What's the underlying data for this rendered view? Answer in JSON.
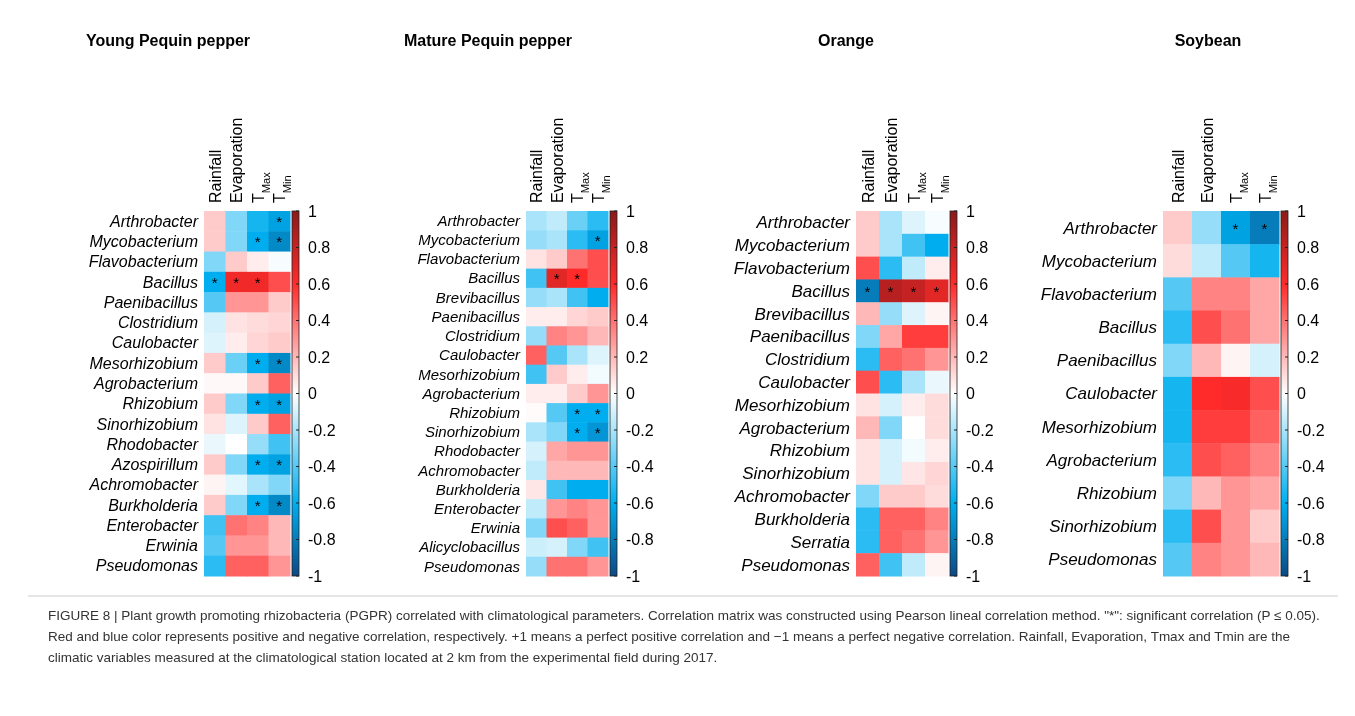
{
  "chart_data": [
    {
      "type": "heatmap",
      "title": "Young Pequin pepper",
      "categories": [
        "Rainfall",
        "Evaporation",
        "T$_{Max}$",
        "T$_{Min}$"
      ],
      "y_categories": [
        "Arthrobacter",
        "Mycobacterium",
        "Flavobacterium",
        "Bacillus",
        "Paenibacillus",
        "Clostridium",
        "Caulobacter",
        "Mesorhizobium",
        "Agrobacterium",
        "Rhizobium",
        "Sinorhizobium",
        "Rhodobacter",
        "Azospirillum",
        "Achromobacter",
        "Burkholderia",
        "Enterobacter",
        "Erwinia",
        "Pseudomonas"
      ],
      "cells": [
        [
          0.15,
          -0.3,
          -0.55,
          -0.65
        ],
        [
          0.15,
          -0.3,
          -0.6,
          -0.75
        ],
        [
          -0.3,
          0.15,
          0.05,
          -0.02
        ],
        [
          -0.6,
          0.65,
          0.65,
          0.5
        ],
        [
          -0.4,
          0.3,
          0.3,
          0.15
        ],
        [
          -0.1,
          0.08,
          0.1,
          0.12
        ],
        [
          -0.08,
          0.05,
          0.12,
          0.15
        ],
        [
          0.15,
          -0.35,
          -0.6,
          -0.75
        ],
        [
          0.02,
          0.02,
          0.15,
          0.45
        ],
        [
          0.15,
          -0.3,
          -0.6,
          -0.65
        ],
        [
          0.08,
          -0.08,
          0.15,
          0.45
        ],
        [
          -0.05,
          0,
          -0.25,
          -0.45
        ],
        [
          0.15,
          -0.3,
          -0.6,
          -0.65
        ],
        [
          0.03,
          -0.07,
          -0.2,
          -0.3
        ],
        [
          0.15,
          -0.3,
          -0.6,
          -0.75
        ],
        [
          -0.45,
          0.4,
          0.35,
          0.2
        ],
        [
          -0.4,
          0.3,
          0.3,
          0.2
        ],
        [
          -0.5,
          0.45,
          0.45,
          0.3
        ]
      ],
      "cell_labels": [
        [
          null,
          null,
          null,
          "*"
        ],
        [
          null,
          null,
          "*",
          "*"
        ],
        [
          null,
          null,
          null,
          null
        ],
        [
          "*",
          "*",
          "*",
          null
        ],
        [
          null,
          null,
          null,
          null
        ],
        [
          null,
          null,
          null,
          null
        ],
        [
          null,
          null,
          null,
          null
        ],
        [
          null,
          null,
          "*",
          "*"
        ],
        [
          null,
          null,
          null,
          null
        ],
        [
          null,
          null,
          "*",
          "*"
        ],
        [
          null,
          null,
          null,
          null
        ],
        [
          null,
          null,
          null,
          null
        ],
        [
          null,
          null,
          "*",
          "*"
        ],
        [
          null,
          null,
          null,
          null
        ],
        [
          null,
          null,
          "*",
          "*"
        ],
        [
          null,
          null,
          null,
          null
        ],
        [
          null,
          null,
          null,
          null
        ],
        [
          null,
          null,
          null,
          null
        ]
      ],
      "clim": [
        -1,
        1
      ],
      "cticks": [
        1,
        0.8,
        0.6,
        0.4,
        0.2,
        0,
        -0.2,
        -0.4,
        -0.6,
        -0.8,
        -1
      ],
      "annotations": [
        "FIGURE 8 | Plant growth promoting rhizobacteria (PGPR) correlated with climatological parameters. Correlation matrix was constructed using Pearson lineal correlation method. \"*\": significant correlation (P ≤ 0.05). Red and blue color represents positive and negative correlation, respectively. +1 means a perfect positive correlation and −1 means a perfect negative correlation. Rainfall, Evaporation, Tmax and Tmin are the climatic variables measured at the climatological station located at 2 km from the experimental field during 2017."
      ]
    },
    {
      "type": "heatmap",
      "title": "Mature Pequin pepper",
      "categories": [
        "Rainfall",
        "Evaporation",
        "T$_{Max}$",
        "T$_{Min}$"
      ],
      "y_categories": [
        "Arthrobacter",
        "Mycobacterium",
        "Flavobacterium",
        "Bacillus",
        "Brevibacillus",
        "Paenibacillus",
        "Clostridium",
        "Caulobacter",
        "Mesorhizobium",
        "Agrobacterium",
        "Rhizobium",
        "Sinorhizobium",
        "Rhodobacter",
        "Achromobacter",
        "Burkholderia",
        "Enterobacter",
        "Erwinia",
        "Alicyclobacillus",
        "Pseudomonas"
      ],
      "cells": [
        [
          -0.2,
          -0.15,
          -0.35,
          -0.5
        ],
        [
          -0.25,
          -0.2,
          -0.5,
          -0.65
        ],
        [
          0.08,
          0.15,
          0.4,
          0.5
        ],
        [
          -0.45,
          0.7,
          0.6,
          0.5
        ],
        [
          -0.25,
          -0.2,
          -0.45,
          -0.6
        ],
        [
          0.05,
          0.05,
          0.12,
          0.15
        ],
        [
          -0.25,
          0.35,
          0.3,
          0.2
        ],
        [
          0.45,
          -0.4,
          -0.2,
          -0.08
        ],
        [
          -0.45,
          0.15,
          0.05,
          -0.03
        ],
        [
          0.05,
          0.05,
          0.15,
          0.3
        ],
        [
          0.01,
          -0.4,
          -0.6,
          -0.6
        ],
        [
          -0.2,
          -0.3,
          -0.6,
          -0.7
        ],
        [
          -0.1,
          0.25,
          0.3,
          0.3
        ],
        [
          -0.15,
          0.2,
          0.2,
          0.2
        ],
        [
          0.07,
          -0.45,
          -0.6,
          -0.6
        ],
        [
          -0.15,
          0.3,
          0.35,
          0.3
        ],
        [
          -0.3,
          0.5,
          0.45,
          0.3
        ],
        [
          -0.12,
          -0.1,
          -0.3,
          -0.45
        ],
        [
          -0.25,
          0.4,
          0.4,
          0.3
        ]
      ],
      "cell_labels": [
        [
          null,
          null,
          null,
          null
        ],
        [
          null,
          null,
          null,
          "*"
        ],
        [
          null,
          null,
          null,
          null
        ],
        [
          null,
          "*",
          "*",
          null
        ],
        [
          null,
          null,
          null,
          null
        ],
        [
          null,
          null,
          null,
          null
        ],
        [
          null,
          null,
          null,
          null
        ],
        [
          null,
          null,
          null,
          null
        ],
        [
          null,
          null,
          null,
          null
        ],
        [
          null,
          null,
          null,
          null
        ],
        [
          null,
          null,
          "*",
          "*"
        ],
        [
          null,
          null,
          "*",
          "*"
        ],
        [
          null,
          null,
          null,
          null
        ],
        [
          null,
          null,
          null,
          null
        ],
        [
          null,
          null,
          null,
          null
        ],
        [
          null,
          null,
          null,
          null
        ],
        [
          null,
          null,
          null,
          null
        ],
        [
          null,
          null,
          null,
          null
        ],
        [
          null,
          null,
          null,
          null
        ]
      ],
      "clim": [
        -1,
        1
      ],
      "cticks": [
        1,
        0.8,
        0.6,
        0.4,
        0.2,
        0,
        -0.2,
        -0.4,
        -0.6,
        -0.8,
        -1
      ]
    },
    {
      "type": "heatmap",
      "title": "Orange",
      "categories": [
        "Rainfall",
        "Evaporation",
        "T$_{Max}$",
        "T$_{Min}$"
      ],
      "y_categories": [
        "Arthrobacter",
        "Mycobacterium",
        "Flavobacterium",
        "Bacillus",
        "Brevibacillus",
        "Paenibacillus",
        "Clostridium",
        "Caulobacter",
        "Mesorhizobium",
        "Agrobacterium",
        "Rhizobium",
        "Sinorhizobium",
        "Achromobacter",
        "Burkholderia",
        "Serratia",
        "Pseudomonas"
      ],
      "cells": [
        [
          0.15,
          -0.2,
          -0.08,
          -0.02
        ],
        [
          0.15,
          -0.2,
          -0.45,
          -0.6
        ],
        [
          0.5,
          -0.5,
          -0.15,
          0.05
        ],
        [
          -0.8,
          0.85,
          0.8,
          0.7
        ],
        [
          0.2,
          -0.25,
          -0.08,
          0.03
        ],
        [
          -0.3,
          0.25,
          0.55,
          0.55
        ],
        [
          -0.5,
          0.45,
          0.4,
          0.3
        ],
        [
          0.5,
          -0.5,
          -0.2,
          -0.05
        ],
        [
          0.08,
          -0.1,
          0.05,
          0.1
        ],
        [
          0.2,
          -0.3,
          0,
          0.1
        ],
        [
          0.08,
          -0.1,
          -0.03,
          0.05
        ],
        [
          0.08,
          -0.1,
          0.07,
          0.12
        ],
        [
          -0.3,
          0.15,
          0.15,
          0.1
        ],
        [
          -0.5,
          0.45,
          0.45,
          0.35
        ],
        [
          -0.5,
          0.45,
          0.4,
          0.3
        ],
        [
          0.45,
          -0.45,
          -0.15,
          0.03
        ]
      ],
      "cell_labels": [
        [
          null,
          null,
          null,
          null
        ],
        [
          null,
          null,
          null,
          null
        ],
        [
          null,
          null,
          null,
          null
        ],
        [
          "*",
          "*",
          "*",
          "*"
        ],
        [
          null,
          null,
          null,
          null
        ],
        [
          null,
          null,
          null,
          null
        ],
        [
          null,
          null,
          null,
          null
        ],
        [
          null,
          null,
          null,
          null
        ],
        [
          null,
          null,
          null,
          null
        ],
        [
          null,
          null,
          null,
          null
        ],
        [
          null,
          null,
          null,
          null
        ],
        [
          null,
          null,
          null,
          null
        ],
        [
          null,
          null,
          null,
          null
        ],
        [
          null,
          null,
          null,
          null
        ],
        [
          null,
          null,
          null,
          null
        ],
        [
          null,
          null,
          null,
          null
        ]
      ],
      "clim": [
        -1,
        1
      ],
      "cticks": [
        1,
        0.8,
        0.6,
        0.4,
        0.2,
        0,
        -0.2,
        -0.4,
        -0.6,
        -0.8,
        -1
      ]
    },
    {
      "type": "heatmap",
      "title": "Soybean",
      "categories": [
        "Rainfall",
        "Evaporation",
        "T$_{Max}$",
        "T$_{Min}$"
      ],
      "y_categories": [
        "Arthrobacter",
        "Mycobacterium",
        "Flavobacterium",
        "Bacillus",
        "Paenibacillus",
        "Caulobacter",
        "Mesorhizobium",
        "Agrobacterium",
        "Rhizobium",
        "Sinorhizobium",
        "Pseudomonas"
      ],
      "cells": [
        [
          0.15,
          -0.25,
          -0.65,
          -0.8
        ],
        [
          0.1,
          -0.15,
          -0.4,
          -0.55
        ],
        [
          -0.4,
          0.35,
          0.35,
          0.25
        ],
        [
          -0.5,
          0.5,
          0.4,
          0.25
        ],
        [
          -0.3,
          0.2,
          0.03,
          -0.1
        ],
        [
          -0.55,
          0.6,
          0.62,
          0.5
        ],
        [
          -0.55,
          0.55,
          0.55,
          0.45
        ],
        [
          -0.5,
          0.5,
          0.45,
          0.35
        ],
        [
          -0.3,
          0.2,
          0.3,
          0.25
        ],
        [
          -0.5,
          0.5,
          0.3,
          0.15
        ],
        [
          -0.4,
          0.35,
          0.3,
          0.2
        ]
      ],
      "cell_labels": [
        [
          null,
          null,
          "*",
          "*"
        ],
        [
          null,
          null,
          null,
          null
        ],
        [
          null,
          null,
          null,
          null
        ],
        [
          null,
          null,
          null,
          null
        ],
        [
          null,
          null,
          null,
          null
        ],
        [
          null,
          null,
          null,
          null
        ],
        [
          null,
          null,
          null,
          null
        ],
        [
          null,
          null,
          null,
          null
        ],
        [
          null,
          null,
          null,
          null
        ],
        [
          null,
          null,
          null,
          null
        ],
        [
          null,
          null,
          null,
          null
        ]
      ],
      "clim": [
        -1,
        1
      ],
      "cticks": [
        1,
        0.8,
        0.6,
        0.4,
        0.2,
        0,
        -0.2,
        -0.4,
        -0.6,
        -0.8,
        -1
      ]
    }
  ]
}
